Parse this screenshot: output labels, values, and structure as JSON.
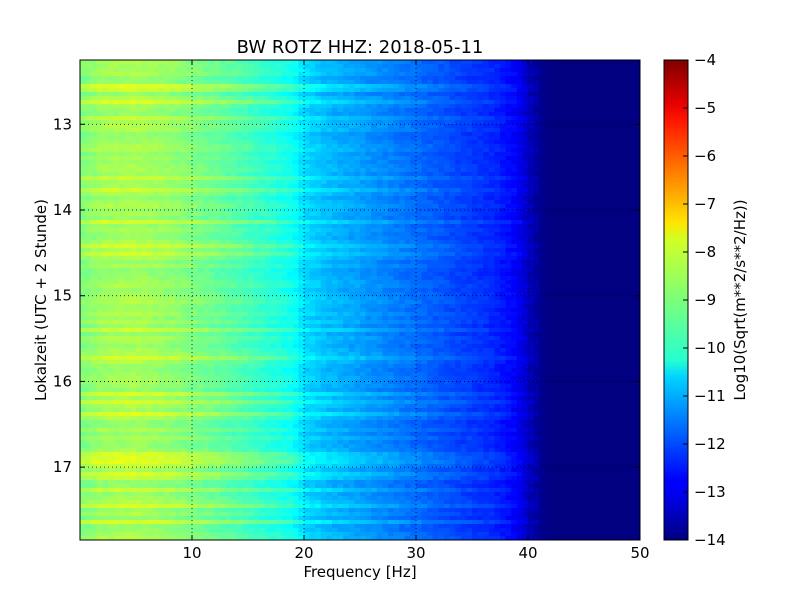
{
  "chart_data": {
    "type": "heatmap",
    "title": "BW ROTZ HHZ: 2018-05-11",
    "xlabel": "Frequency [Hz]",
    "ylabel": "Lokalzeit (UTC + 2 Stunde)",
    "colorbar_label": "Log10(Sqrt(m**2/s**2/Hz))",
    "colormap": "jet",
    "xlim": [
      0,
      50
    ],
    "ylim": [
      12.25,
      17.85
    ],
    "y_inverted": true,
    "clim": [
      -14,
      -4
    ],
    "grid": true,
    "x_ticks": [
      10,
      20,
      30,
      40,
      50
    ],
    "x_tick_labels": [
      "10",
      "20",
      "30",
      "40",
      "50"
    ],
    "y_ticks": [
      13,
      14,
      15,
      16,
      17
    ],
    "y_tick_labels": [
      "13",
      "14",
      "15",
      "16",
      "17"
    ],
    "colorbar_ticks": [
      -14,
      -13,
      -12,
      -11,
      -10,
      -9,
      -8,
      -7,
      -6,
      -5,
      -4
    ],
    "colorbar_tick_labels": [
      "−14",
      "−13",
      "−12",
      "−11",
      "−10",
      "−9",
      "−8",
      "−7",
      "−6",
      "−5",
      "−4"
    ],
    "frequency_profile": {
      "frequency_hz": [
        0,
        2,
        5,
        8,
        10,
        13,
        16,
        19,
        20,
        22,
        25,
        28,
        31,
        34,
        37,
        39,
        40,
        41,
        42,
        50
      ],
      "log10_amplitude": [
        -9.0,
        -8.7,
        -8.6,
        -8.8,
        -9.0,
        -9.3,
        -9.7,
        -10.1,
        -10.6,
        -10.9,
        -11.2,
        -11.5,
        -11.8,
        -12.1,
        -12.4,
        -12.8,
        -13.3,
        -13.8,
        -14.0,
        -14.0
      ]
    },
    "event_bands": [
      {
        "time": 12.9,
        "log10_amplitude_peak": -7.3
      },
      {
        "time": 13.3,
        "log10_amplitude_peak": -8.1
      },
      {
        "time": 13.55,
        "log10_amplitude_peak": -8.0
      },
      {
        "time": 14.7,
        "log10_amplitude_peak": -8.1
      },
      {
        "time": 15.65,
        "log10_amplitude_peak": -7.8
      },
      {
        "time": 16.15,
        "log10_amplitude_peak": -7.9
      },
      {
        "time": 16.9,
        "log10_amplitude_peak": -7.9
      },
      {
        "time": 17.1,
        "log10_amplitude_peak": -8.1
      }
    ]
  }
}
